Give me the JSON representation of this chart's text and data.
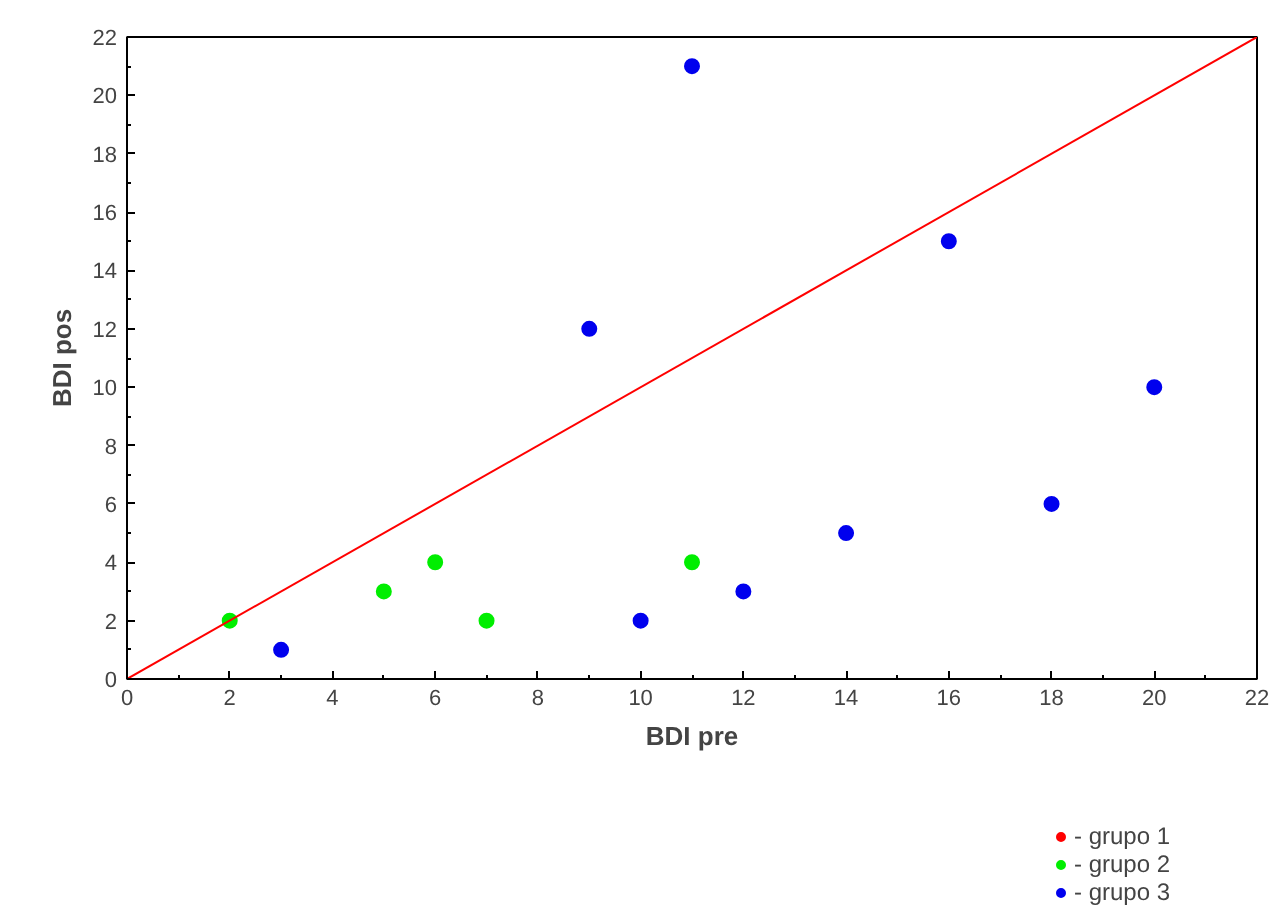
{
  "chart_data": {
    "type": "scatter",
    "xlabel": "BDI pre",
    "ylabel": "BDI pos",
    "xlim": [
      0,
      22
    ],
    "ylim": [
      0,
      22
    ],
    "xticks": [
      0,
      2,
      4,
      6,
      8,
      10,
      12,
      14,
      16,
      18,
      20,
      22
    ],
    "yticks": [
      0,
      2,
      4,
      6,
      8,
      10,
      12,
      14,
      16,
      18,
      20,
      22
    ],
    "grid": false,
    "legend": "bottom right",
    "marker": "circle",
    "series": [
      {
        "name": "- grupo 1",
        "color": "#ff0000"
      },
      {
        "name": "- grupo 2",
        "color": "#00ee00",
        "x": [
          2,
          5,
          6,
          7,
          11
        ],
        "values": [
          2,
          3,
          4,
          2,
          4
        ]
      },
      {
        "name": "- grupo 3",
        "color": "#0000ee",
        "x": [
          3,
          9,
          10,
          11,
          12,
          14,
          16,
          18,
          20
        ],
        "values": [
          1,
          12,
          2,
          21,
          3,
          5,
          15,
          6,
          10
        ]
      },
      {
        "type": "line",
        "color": "#ff0000",
        "x": [
          0,
          22
        ],
        "values": [
          0,
          22
        ],
        "line_style": "solid",
        "marker": "none"
      }
    ]
  }
}
